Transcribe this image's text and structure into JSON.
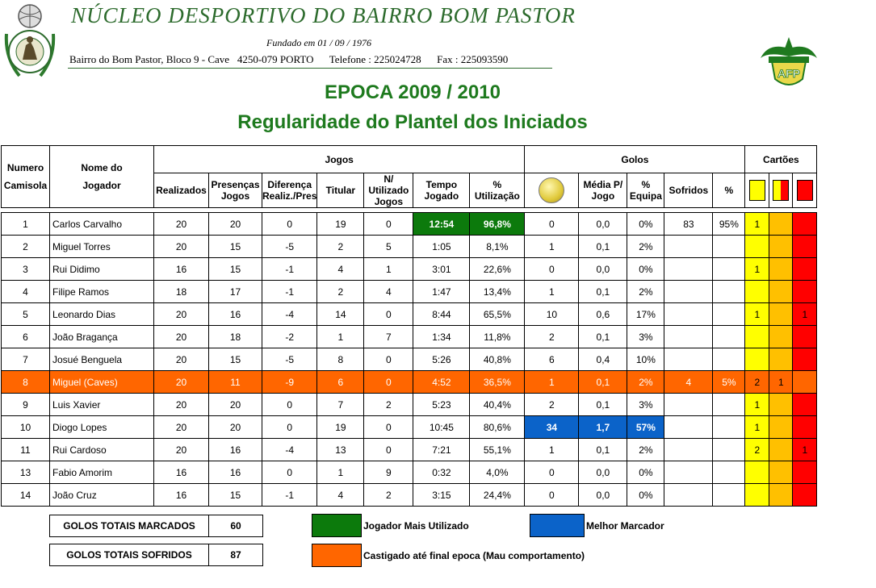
{
  "header": {
    "club_name": "NÚCLEO DESPORTIVO DO BAIRRO BOM PASTOR",
    "founded": "Fundado em 01 / 09 / 1976",
    "address": "Bairro do Bom Pastor, Bloco 9 - Cave   4250-079 PORTO      Telefone : 225024728      Fax : 225093590",
    "logo_left_text": "NÚCLEO DESPORTIVO DO BAIRRO BOM PASTOR",
    "logo_right_text": "AFP",
    "season": "EPOCA 2009 / 2010",
    "subtitle": "Regularidade do Plantel dos Iniciados"
  },
  "table": {
    "col_number": "Numero Camisola",
    "col_name": "Nome do Jogador",
    "group_games": "Jogos",
    "group_goals": "Golos",
    "group_cards": "Cartões",
    "sub_games": [
      "Realizados",
      "Presenças Jogos",
      "Diferença Realiz./Pres",
      "Titular",
      "N/ Utilizado Jogos",
      "Tempo Jogado",
      "% Utilização"
    ],
    "sub_goals": [
      "Média P/ Jogo",
      "% Equipa",
      "Sofridos",
      "%"
    ],
    "card_colors": {
      "yellow": "#ffff00",
      "yellow_red": "#ffc000",
      "red": "#ff0000"
    },
    "rows": [
      {
        "num": "1",
        "name": "Carlos Carvalho",
        "real": "20",
        "pres": "20",
        "diff": "0",
        "tit": "19",
        "nut": "0",
        "time": "12:54",
        "util": "96,8%",
        "goals": "0",
        "avg": "0,0",
        "team": "0%",
        "conc": "83",
        "concpct": "95%",
        "y": "1",
        "yr": "",
        "r": "",
        "hl": "mostused"
      },
      {
        "num": "2",
        "name": "Miguel Torres",
        "real": "20",
        "pres": "15",
        "diff": "-5",
        "tit": "2",
        "nut": "5",
        "time": "1:05",
        "util": "8,1%",
        "goals": "1",
        "avg": "0,1",
        "team": "2%",
        "conc": "",
        "concpct": "",
        "y": "",
        "yr": "",
        "r": "",
        "hl": ""
      },
      {
        "num": "3",
        "name": "Rui Didimo",
        "real": "16",
        "pres": "15",
        "diff": "-1",
        "tit": "4",
        "nut": "1",
        "time": "3:01",
        "util": "22,6%",
        "goals": "0",
        "avg": "0,0",
        "team": "0%",
        "conc": "",
        "concpct": "",
        "y": "1",
        "yr": "",
        "r": "",
        "hl": ""
      },
      {
        "num": "4",
        "name": "Filipe Ramos",
        "real": "18",
        "pres": "17",
        "diff": "-1",
        "tit": "2",
        "nut": "4",
        "time": "1:47",
        "util": "13,4%",
        "goals": "1",
        "avg": "0,1",
        "team": "2%",
        "conc": "",
        "concpct": "",
        "y": "",
        "yr": "",
        "r": "",
        "hl": ""
      },
      {
        "num": "5",
        "name": "Leonardo Dias",
        "real": "20",
        "pres": "16",
        "diff": "-4",
        "tit": "14",
        "nut": "0",
        "time": "8:44",
        "util": "65,5%",
        "goals": "10",
        "avg": "0,6",
        "team": "17%",
        "conc": "",
        "concpct": "",
        "y": "1",
        "yr": "",
        "r": "1",
        "hl": ""
      },
      {
        "num": "6",
        "name": "João Bragança",
        "real": "20",
        "pres": "18",
        "diff": "-2",
        "tit": "1",
        "nut": "7",
        "time": "1:34",
        "util": "11,8%",
        "goals": "2",
        "avg": "0,1",
        "team": "3%",
        "conc": "",
        "concpct": "",
        "y": "",
        "yr": "",
        "r": "",
        "hl": ""
      },
      {
        "num": "7",
        "name": "Josué Benguela",
        "real": "20",
        "pres": "15",
        "diff": "-5",
        "tit": "8",
        "nut": "0",
        "time": "5:26",
        "util": "40,8%",
        "goals": "6",
        "avg": "0,4",
        "team": "10%",
        "conc": "",
        "concpct": "",
        "y": "",
        "yr": "",
        "r": "",
        "hl": ""
      },
      {
        "num": "8",
        "name": "Miguel (Caves)",
        "real": "20",
        "pres": "11",
        "diff": "-9",
        "tit": "6",
        "nut": "0",
        "time": "4:52",
        "util": "36,5%",
        "goals": "1",
        "avg": "0,1",
        "team": "2%",
        "conc": "4",
        "concpct": "5%",
        "y": "2",
        "yr": "1",
        "r": "",
        "hl": "banned"
      },
      {
        "num": "9",
        "name": "Luis Xavier",
        "real": "20",
        "pres": "20",
        "diff": "0",
        "tit": "7",
        "nut": "2",
        "time": "5:23",
        "util": "40,4%",
        "goals": "2",
        "avg": "0,1",
        "team": "3%",
        "conc": "",
        "concpct": "",
        "y": "1",
        "yr": "",
        "r": "",
        "hl": ""
      },
      {
        "num": "10",
        "name": "Diogo Lopes",
        "real": "20",
        "pres": "20",
        "diff": "0",
        "tit": "19",
        "nut": "0",
        "time": "10:45",
        "util": "80,6%",
        "goals": "34",
        "avg": "1,7",
        "team": "57%",
        "conc": "",
        "concpct": "",
        "y": "1",
        "yr": "",
        "r": "",
        "hl": "topscorer"
      },
      {
        "num": "11",
        "name": "Rui Cardoso",
        "real": "20",
        "pres": "16",
        "diff": "-4",
        "tit": "13",
        "nut": "0",
        "time": "7:21",
        "util": "55,1%",
        "goals": "1",
        "avg": "0,1",
        "team": "2%",
        "conc": "",
        "concpct": "",
        "y": "2",
        "yr": "",
        "r": "1",
        "hl": ""
      },
      {
        "num": "13",
        "name": "Fabio Amorim",
        "real": "16",
        "pres": "16",
        "diff": "0",
        "tit": "1",
        "nut": "9",
        "time": "0:32",
        "util": "4,0%",
        "goals": "0",
        "avg": "0,0",
        "team": "0%",
        "conc": "",
        "concpct": "",
        "y": "",
        "yr": "",
        "r": "",
        "hl": ""
      },
      {
        "num": "14",
        "name": "João Cruz",
        "real": "16",
        "pres": "15",
        "diff": "-1",
        "tit": "4",
        "nut": "2",
        "time": "3:15",
        "util": "24,4%",
        "goals": "0",
        "avg": "0,0",
        "team": "0%",
        "conc": "",
        "concpct": "",
        "y": "",
        "yr": "",
        "r": "",
        "hl": ""
      }
    ]
  },
  "totals": {
    "scored_label": "GOLOS TOTAIS MARCADOS",
    "scored_value": "60",
    "conceded_label": "GOLOS TOTAIS SOFRIDOS",
    "conceded_value": "87"
  },
  "legend": {
    "most_used": "Jogador Mais Utilizado",
    "most_used_color": "#0c7a0c",
    "top_scorer": "Melhor Marcador",
    "top_scorer_color": "#0b63c9",
    "banned": "Castigado até final epoca (Mau comportamento)",
    "banned_color": "#ff6600"
  }
}
